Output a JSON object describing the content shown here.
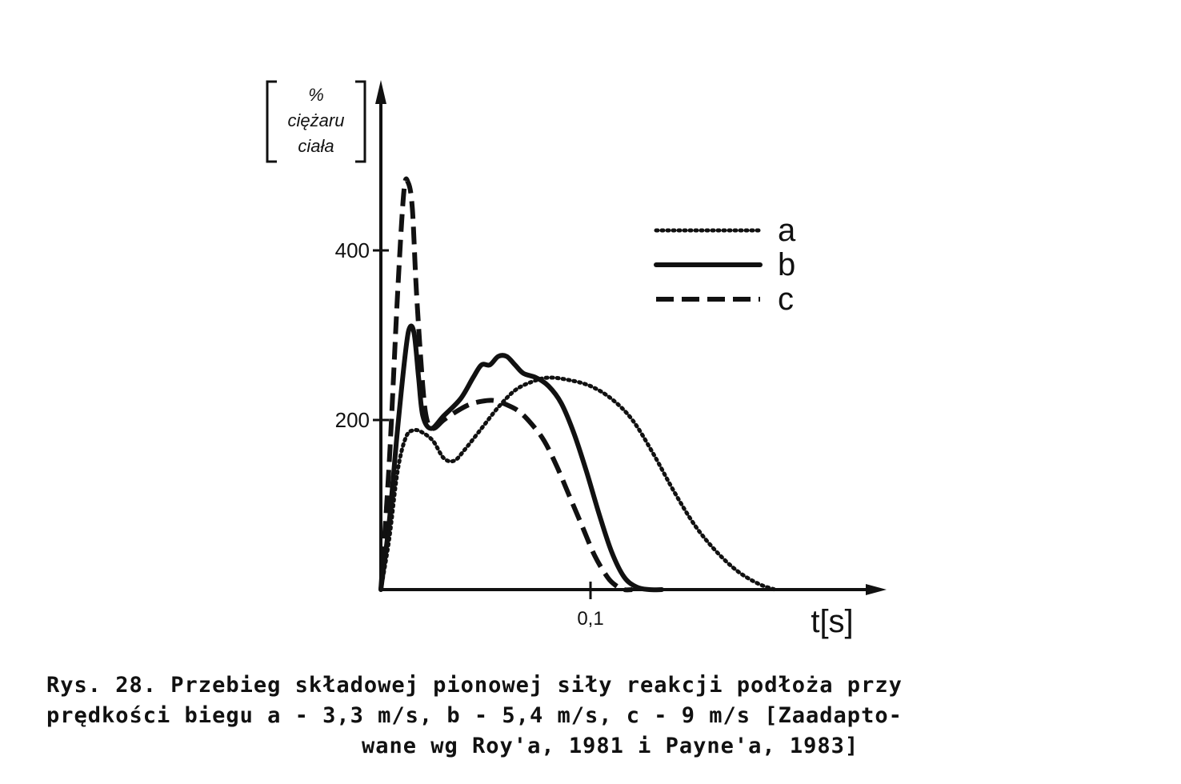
{
  "chart_data": {
    "type": "line",
    "title": "",
    "ylabel_lines": [
      "%",
      "ciężaru",
      "ciała"
    ],
    "xlabel": "t[s]",
    "x_ticks": [
      {
        "value": 0.1,
        "label": "0,1"
      }
    ],
    "y_ticks": [
      {
        "value": 200,
        "label": "200"
      },
      {
        "value": 400,
        "label": "400"
      }
    ],
    "xlim": [
      0,
      0.24
    ],
    "ylim": [
      0,
      600
    ],
    "grid": false,
    "legend_position": "top-right",
    "series": [
      {
        "name": "a",
        "style": "dotted",
        "x": [
          0,
          0.004,
          0.008,
          0.012,
          0.016,
          0.02,
          0.025,
          0.03,
          0.035,
          0.04,
          0.048,
          0.056,
          0.064,
          0.072,
          0.08,
          0.09,
          0.1,
          0.11,
          0.12,
          0.13,
          0.14,
          0.15,
          0.16,
          0.17,
          0.18,
          0.188
        ],
        "y": [
          0,
          60,
          140,
          180,
          188,
          185,
          175,
          155,
          152,
          165,
          190,
          215,
          235,
          245,
          250,
          247,
          240,
          225,
          200,
          160,
          115,
          75,
          45,
          22,
          7,
          0
        ]
      },
      {
        "name": "b",
        "style": "solid",
        "x": [
          0,
          0.004,
          0.008,
          0.012,
          0.014,
          0.016,
          0.018,
          0.02,
          0.024,
          0.03,
          0.038,
          0.044,
          0.048,
          0.052,
          0.056,
          0.06,
          0.064,
          0.068,
          0.074,
          0.08,
          0.086,
          0.092,
          0.098,
          0.104,
          0.11,
          0.116,
          0.122,
          0.128,
          0.134
        ],
        "y": [
          0,
          80,
          190,
          285,
          310,
          300,
          250,
          205,
          190,
          205,
          225,
          250,
          265,
          265,
          275,
          275,
          265,
          255,
          250,
          240,
          220,
          185,
          140,
          90,
          45,
          15,
          3,
          0,
          0
        ]
      },
      {
        "name": "c",
        "style": "dashed",
        "x": [
          0,
          0.004,
          0.008,
          0.011,
          0.013,
          0.015,
          0.017,
          0.02,
          0.022,
          0.025,
          0.03,
          0.036,
          0.042,
          0.048,
          0.054,
          0.06,
          0.066,
          0.072,
          0.078,
          0.084,
          0.09,
          0.096,
          0.102,
          0.108,
          0.112,
          0.116,
          0.12
        ],
        "y": [
          0,
          150,
          350,
          470,
          480,
          450,
          350,
          240,
          200,
          190,
          200,
          210,
          218,
          222,
          223,
          218,
          210,
          195,
          175,
          145,
          110,
          75,
          40,
          15,
          5,
          0,
          0
        ]
      }
    ]
  },
  "caption": {
    "line1": "Rys. 28. Przebieg składowej pionowej siły reakcji podłoża przy",
    "line2": "prędkości biegu a - 3,3 m/s, b - 5,4 m/s, c - 9 m/s [Zaadapto-",
    "line3": "wane wg Roy'a, 1981 i Payne'a, 1983]"
  },
  "colors": {
    "ink": "#111111",
    "background": "#ffffff"
  }
}
